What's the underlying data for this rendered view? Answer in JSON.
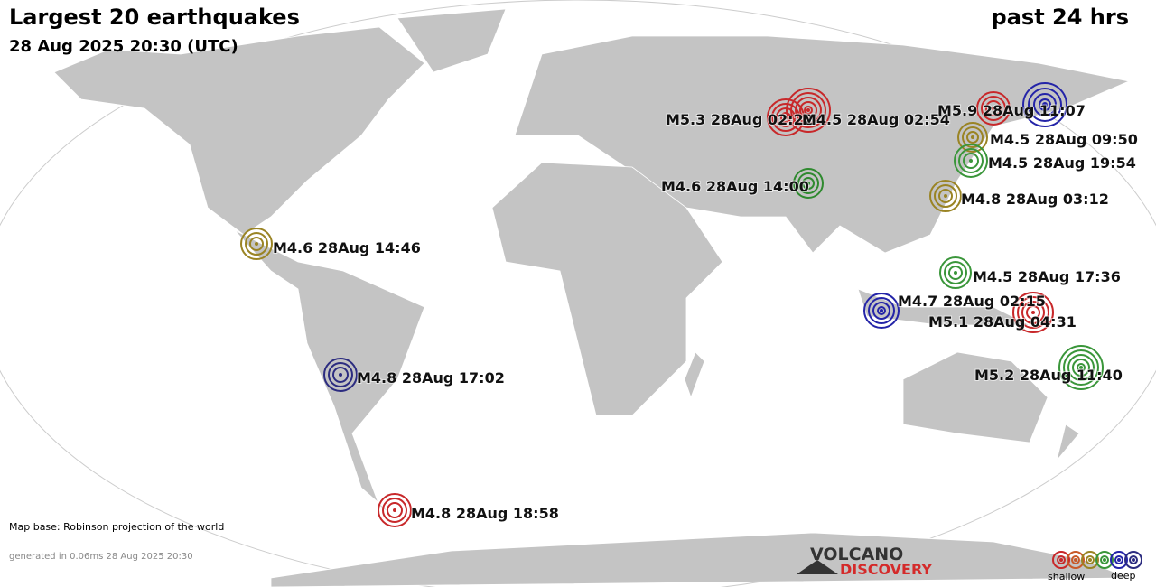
{
  "header": {
    "title": "Largest 20 earthquakes",
    "subtitle": "28 Aug 2025 20:30 (UTC)",
    "period": "past 24 hrs"
  },
  "quakes": [
    {
      "label": "M5.3 28Aug 02:22",
      "color": "#c8282a"
    },
    {
      "label": "M4.5 28Aug 02:54",
      "color": "#c8282a"
    },
    {
      "label": "M5.9 28Aug 11:07",
      "color": "#c8282a"
    },
    {
      "label": "M4.5 28Aug 09:50",
      "color": "#9a8424"
    },
    {
      "label": "M4.5 28Aug 19:54",
      "color": "#3a963a"
    },
    {
      "label": "M4.6 28Aug 14:00",
      "color": "#2f8a2f"
    },
    {
      "label": "M4.8 28Aug 03:12",
      "color": "#9a8424"
    },
    {
      "label": "M4.6 28Aug 14:46",
      "color": "#9a8424"
    },
    {
      "label": "M4.5 28Aug 17:36",
      "color": "#3a963a"
    },
    {
      "label": "M4.7 28Aug 02:15",
      "color": "#2424a8"
    },
    {
      "label": "M5.1 28Aug 04:31",
      "color": "#c8282a"
    },
    {
      "label": "M4.8 28Aug 17:02",
      "color": "#2c2c80"
    },
    {
      "label": "M5.2 28Aug 11:40",
      "color": "#3a963a"
    },
    {
      "label": "M4.8 28Aug 18:58",
      "color": "#c8282a"
    }
  ],
  "footer": {
    "map_base": "Map base: Robinson projection of the world",
    "generated": "generated in 0.06ms 28 Aug 2025 20:30",
    "logo_top": "VOLCANO",
    "logo_bottom": "DISCOVERY",
    "legend_shallow": "shallow",
    "legend_deep": "deep"
  }
}
